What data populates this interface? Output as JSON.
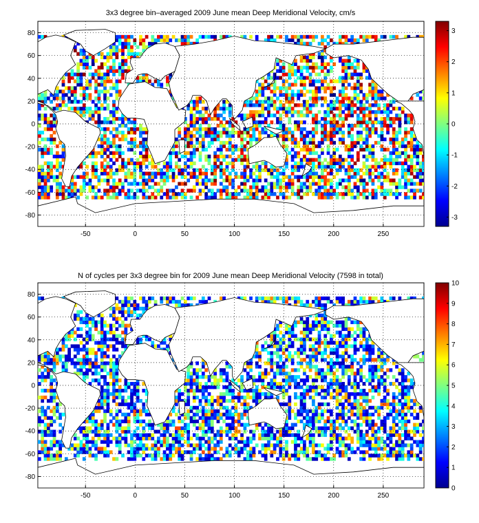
{
  "chart_data": [
    {
      "type": "heatmap",
      "title": "3x3 degree bin–averaged 2009 June mean Deep Meridional Velocity, cm/s",
      "xlabel": "",
      "ylabel": "",
      "xlim": [
        -98,
        291
      ],
      "ylim": [
        -90,
        90
      ],
      "x_ticks": [
        -50,
        0,
        50,
        100,
        150,
        200,
        250
      ],
      "y_ticks": [
        -80,
        -60,
        -40,
        -20,
        0,
        20,
        40,
        60,
        80
      ],
      "grid": true,
      "bin_size_deg": 3,
      "colorbar": {
        "min": -3.3,
        "max": 3.3,
        "ticks": [
          -3,
          -2,
          -1,
          0,
          1,
          2,
          3
        ],
        "colormap": "jet"
      },
      "values_description_range": [
        -3.3,
        3.3
      ]
    },
    {
      "type": "heatmap",
      "title": "N of cycles per 3x3 degree bin for 2009 June mean Deep Meridional Velocity (7598 in total)",
      "xlabel": "",
      "ylabel": "",
      "xlim": [
        -98,
        291
      ],
      "ylim": [
        -90,
        90
      ],
      "x_ticks": [
        -50,
        0,
        50,
        100,
        150,
        200,
        250
      ],
      "y_ticks": [
        -80,
        -60,
        -40,
        -20,
        0,
        20,
        40,
        60,
        80
      ],
      "grid": true,
      "bin_size_deg": 3,
      "colorbar": {
        "min": 0,
        "max": 10,
        "ticks": [
          0,
          1,
          2,
          3,
          4,
          5,
          6,
          7,
          8,
          9,
          10
        ],
        "colormap": "jet"
      },
      "values_description_range": [
        0,
        10
      ]
    }
  ]
}
